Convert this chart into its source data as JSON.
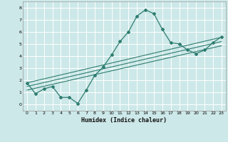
{
  "xlabel": "Humidex (Indice chaleur)",
  "bg_color": "#cde8e8",
  "grid_color": "#ffffff",
  "line_color": "#2e7d70",
  "xlim": [
    -0.5,
    23.5
  ],
  "ylim": [
    -0.5,
    8.5
  ],
  "xticks": [
    0,
    1,
    2,
    3,
    4,
    5,
    6,
    7,
    8,
    9,
    10,
    11,
    12,
    13,
    14,
    15,
    16,
    17,
    18,
    19,
    20,
    21,
    22,
    23
  ],
  "yticks": [
    0,
    1,
    2,
    3,
    4,
    5,
    6,
    7,
    8
  ],
  "curve_x": [
    0,
    1,
    2,
    3,
    4,
    5,
    6,
    7,
    8,
    9,
    10,
    11,
    12,
    13,
    14,
    15,
    16,
    17,
    18,
    19,
    20,
    21,
    22,
    23
  ],
  "curve_y": [
    1.8,
    0.9,
    1.3,
    1.5,
    0.6,
    0.6,
    0.1,
    1.2,
    2.4,
    3.1,
    4.1,
    5.2,
    6.0,
    7.3,
    7.8,
    7.5,
    6.2,
    5.1,
    5.0,
    4.5,
    4.2,
    4.5,
    5.1,
    5.6
  ],
  "line1_y": [
    1.8,
    5.55
  ],
  "line2_y": [
    1.5,
    5.2
  ],
  "line3_y": [
    1.2,
    4.85
  ]
}
